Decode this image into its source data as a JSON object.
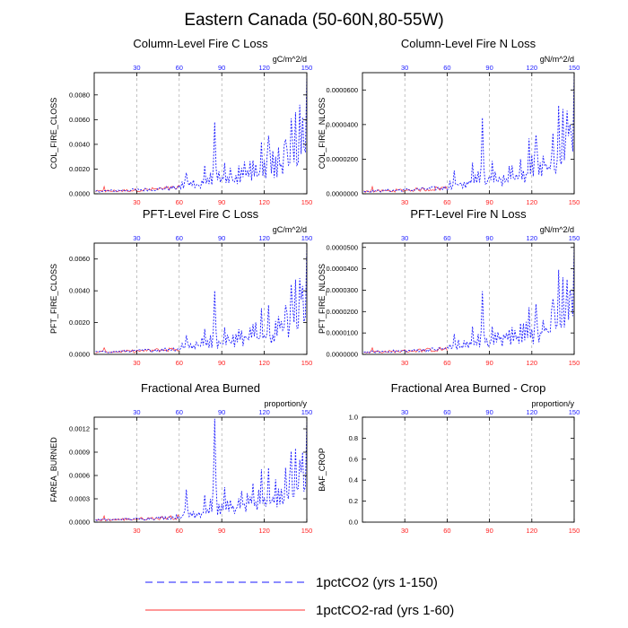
{
  "title": "Eastern Canada (50-60N,80-55W)",
  "legend": [
    {
      "label": "1pctCO2 (yrs 1-150)",
      "color": "#1a1aff",
      "dash": "8,5"
    },
    {
      "label": "1pctCO2-rad (yrs 1-60)",
      "color": "#ff3030",
      "dash": ""
    }
  ],
  "chart_data": [
    {
      "type": "line",
      "title": "Column-Level Fire C Loss",
      "ylabel": "COL_FIRE_CLOSS",
      "unit": "gC/m^2/d",
      "xlim": [
        0,
        150
      ],
      "xticks": [
        30,
        60,
        90,
        120,
        150
      ],
      "ylim": [
        0,
        0.0098
      ],
      "yticks": [
        0,
        0.002,
        0.004,
        0.006,
        0.008
      ],
      "yticklabels": [
        "0.0000",
        "0.0020",
        "0.0040",
        "0.0060",
        "0.0080"
      ],
      "peaks": [
        [
          65,
          0.0017
        ],
        [
          78,
          0.0023
        ],
        [
          82,
          0.0017
        ],
        [
          85,
          0.0058
        ],
        [
          92,
          0.0025
        ],
        [
          104,
          0.0021
        ],
        [
          112,
          0.0027
        ],
        [
          118,
          0.0042
        ],
        [
          123,
          0.0047
        ],
        [
          128,
          0.003
        ],
        [
          135,
          0.0044
        ],
        [
          139,
          0.0061
        ],
        [
          142,
          0.0066
        ],
        [
          145,
          0.0072
        ],
        [
          147,
          0.0062
        ],
        [
          150,
          0.0096
        ]
      ],
      "series": [
        {
          "name": "1pctCO2 (yrs 1-150)",
          "x_start": 1,
          "x_end": 150
        },
        {
          "name": "1pctCO2-rad (yrs 1-60)",
          "x_start": 1,
          "x_end": 60
        }
      ]
    },
    {
      "type": "line",
      "title": "Column-Level Fire N Loss",
      "ylabel": "COL_FIRE_NLOSS",
      "unit": "gN/m^2/d",
      "xlim": [
        0,
        150
      ],
      "xticks": [
        30,
        60,
        90,
        120,
        150
      ],
      "ylim": [
        0,
        7e-05
      ],
      "yticks": [
        0,
        2e-05,
        4e-05,
        6e-05
      ],
      "yticklabels": [
        "0.0000000",
        "0.0000200",
        "0.0000400",
        "0.0000600"
      ],
      "peaks": [
        [
          65,
          1.35e-05
        ],
        [
          78,
          1.8e-05
        ],
        [
          82,
          1.3e-05
        ],
        [
          85,
          4.4e-05
        ],
        [
          92,
          1.9e-05
        ],
        [
          104,
          1.6e-05
        ],
        [
          112,
          2e-05
        ],
        [
          118,
          3.2e-05
        ],
        [
          123,
          3.4e-05
        ],
        [
          128,
          2.2e-05
        ],
        [
          135,
          3.5e-05
        ],
        [
          139,
          5.1e-05
        ],
        [
          142,
          4.9e-05
        ],
        [
          145,
          4.8e-05
        ],
        [
          147,
          4e-05
        ],
        [
          150,
          7e-05
        ]
      ],
      "series": [
        {
          "name": "1pctCO2 (yrs 1-150)",
          "x_start": 1,
          "x_end": 150
        },
        {
          "name": "1pctCO2-rad (yrs 1-60)",
          "x_start": 1,
          "x_end": 60
        }
      ]
    },
    {
      "type": "line",
      "title": "PFT-Level Fire C Loss",
      "ylabel": "PFT_FIRE_CLOSS",
      "unit": "gC/m^2/d",
      "xlim": [
        0,
        150
      ],
      "xticks": [
        30,
        60,
        90,
        120,
        150
      ],
      "ylim": [
        0,
        0.007
      ],
      "yticks": [
        0,
        0.002,
        0.004,
        0.006
      ],
      "yticklabels": [
        "0.0000",
        "0.0020",
        "0.0040",
        "0.0060"
      ],
      "peaks": [
        [
          65,
          0.0012
        ],
        [
          78,
          0.0016
        ],
        [
          82,
          0.0012
        ],
        [
          85,
          0.004
        ],
        [
          92,
          0.0017
        ],
        [
          104,
          0.0015
        ],
        [
          112,
          0.0019
        ],
        [
          118,
          0.0029
        ],
        [
          123,
          0.0031
        ],
        [
          128,
          0.0021
        ],
        [
          135,
          0.0031
        ],
        [
          139,
          0.0044
        ],
        [
          142,
          0.0047
        ],
        [
          145,
          0.0048
        ],
        [
          147,
          0.0043
        ],
        [
          150,
          0.0068
        ]
      ],
      "series": [
        {
          "name": "1pctCO2 (yrs 1-150)",
          "x_start": 1,
          "x_end": 150
        },
        {
          "name": "1pctCO2-rad (yrs 1-60)",
          "x_start": 1,
          "x_end": 60
        }
      ]
    },
    {
      "type": "line",
      "title": "PFT-Level Fire N Loss",
      "ylabel": "PFT_FIRE_NLOSS",
      "unit": "gN/m^2/d",
      "xlim": [
        0,
        150
      ],
      "xticks": [
        30,
        60,
        90,
        120,
        150
      ],
      "ylim": [
        0,
        5.2e-05
      ],
      "yticks": [
        0,
        1e-05,
        2e-05,
        3e-05,
        4e-05,
        5e-05
      ],
      "yticklabels": [
        "0.0000000",
        "0.0000100",
        "0.0000200",
        "0.0000300",
        "0.0000400",
        "0.0000500"
      ],
      "peaks": [
        [
          65,
          9.5e-06
        ],
        [
          78,
          1.3e-05
        ],
        [
          82,
          9.5e-06
        ],
        [
          85,
          2.95e-05
        ],
        [
          92,
          1.3e-05
        ],
        [
          104,
          1.15e-05
        ],
        [
          112,
          1.45e-05
        ],
        [
          118,
          2.2e-05
        ],
        [
          123,
          2.35e-05
        ],
        [
          128,
          1.6e-05
        ],
        [
          135,
          2.6e-05
        ],
        [
          139,
          3.95e-05
        ],
        [
          142,
          3.6e-05
        ],
        [
          145,
          3.5e-05
        ],
        [
          147,
          3e-05
        ],
        [
          150,
          5.1e-05
        ]
      ],
      "series": [
        {
          "name": "1pctCO2 (yrs 1-150)",
          "x_start": 1,
          "x_end": 150
        },
        {
          "name": "1pctCO2-rad (yrs 1-60)",
          "x_start": 1,
          "x_end": 60
        }
      ]
    },
    {
      "type": "line",
      "title": "Fractional Area Burned",
      "ylabel": "FAREA_BURNED",
      "unit": "proportion/y",
      "xlim": [
        0,
        150
      ],
      "xticks": [
        30,
        60,
        90,
        120,
        150
      ],
      "ylim": [
        0,
        0.00135
      ],
      "yticks": [
        0,
        0.0003,
        0.0006,
        0.0009,
        0.0012
      ],
      "yticklabels": [
        "0.0000",
        "0.0003",
        "0.0006",
        "0.0009",
        "0.0012"
      ],
      "peaks": [
        [
          65,
          0.00042
        ],
        [
          78,
          0.00035
        ],
        [
          82,
          0.0003
        ],
        [
          85,
          0.00133
        ],
        [
          92,
          0.00045
        ],
        [
          104,
          0.0004
        ],
        [
          112,
          0.0005
        ],
        [
          118,
          0.00068
        ],
        [
          123,
          0.0007
        ],
        [
          128,
          0.00055
        ],
        [
          135,
          0.0007
        ],
        [
          139,
          0.00091
        ],
        [
          142,
          0.00095
        ],
        [
          145,
          0.0008
        ],
        [
          147,
          0.0009
        ],
        [
          150,
          0.0013
        ]
      ],
      "series": [
        {
          "name": "1pctCO2 (yrs 1-150)",
          "x_start": 1,
          "x_end": 150
        },
        {
          "name": "1pctCO2-rad (yrs 1-60)",
          "x_start": 1,
          "x_end": 60
        }
      ]
    },
    {
      "type": "line",
      "title": "Fractional Area Burned - Crop",
      "ylabel": "BAF_CROP",
      "unit": "proportion/y",
      "xlim": [
        0,
        150
      ],
      "xticks": [
        30,
        60,
        90,
        120,
        150
      ],
      "ylim": [
        0,
        1.0
      ],
      "yticks": [
        0,
        0.2,
        0.4,
        0.6,
        0.8,
        1.0
      ],
      "yticklabels": [
        "0.0",
        "0.2",
        "0.4",
        "0.6",
        "0.8",
        "1.0"
      ],
      "peaks": [],
      "series": []
    }
  ]
}
